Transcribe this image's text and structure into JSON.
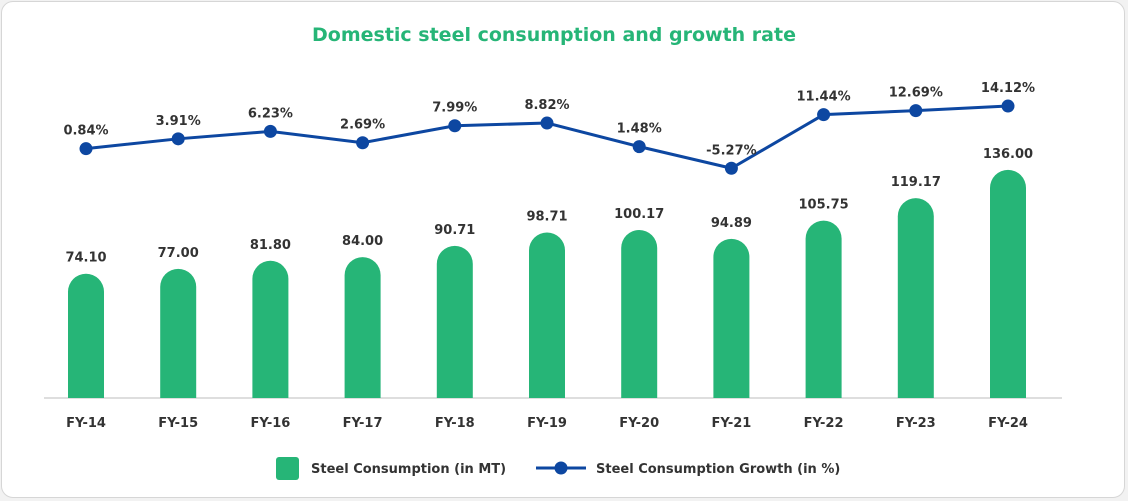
{
  "chart_data": {
    "type": "bar",
    "title": "Domestic steel consumption and growth rate",
    "categories": [
      "FY-14",
      "FY-15",
      "FY-16",
      "FY-17",
      "FY-18",
      "FY-19",
      "FY-20",
      "FY-21",
      "FY-22",
      "FY-23",
      "FY-24"
    ],
    "series": [
      {
        "name": "Steel Consumption (in MT)",
        "type": "bar",
        "values": [
          74.1,
          77.0,
          81.8,
          84.0,
          90.71,
          98.71,
          100.17,
          94.89,
          105.75,
          119.17,
          136.0
        ],
        "labels": [
          "74.10",
          "77.00",
          "81.80",
          "84.00",
          "90.71",
          "98.71",
          "100.17",
          "94.89",
          "105.75",
          "119.17",
          "136.00"
        ],
        "color": "#26b577"
      },
      {
        "name": "Steel Consumption Growth (in %)",
        "type": "line",
        "values": [
          0.84,
          3.91,
          6.23,
          2.69,
          7.99,
          8.82,
          1.48,
          -5.27,
          11.44,
          12.69,
          14.12
        ],
        "labels": [
          "0.84%",
          "3.91%",
          "6.23%",
          "2.69%",
          "7.99%",
          "8.82%",
          "1.48%",
          "-5.27%",
          "11.44%",
          "12.69%",
          "14.12%"
        ],
        "color": "#0d47a1"
      }
    ],
    "title_color": "#26b577",
    "grid": false,
    "legend_position": "bottom"
  }
}
